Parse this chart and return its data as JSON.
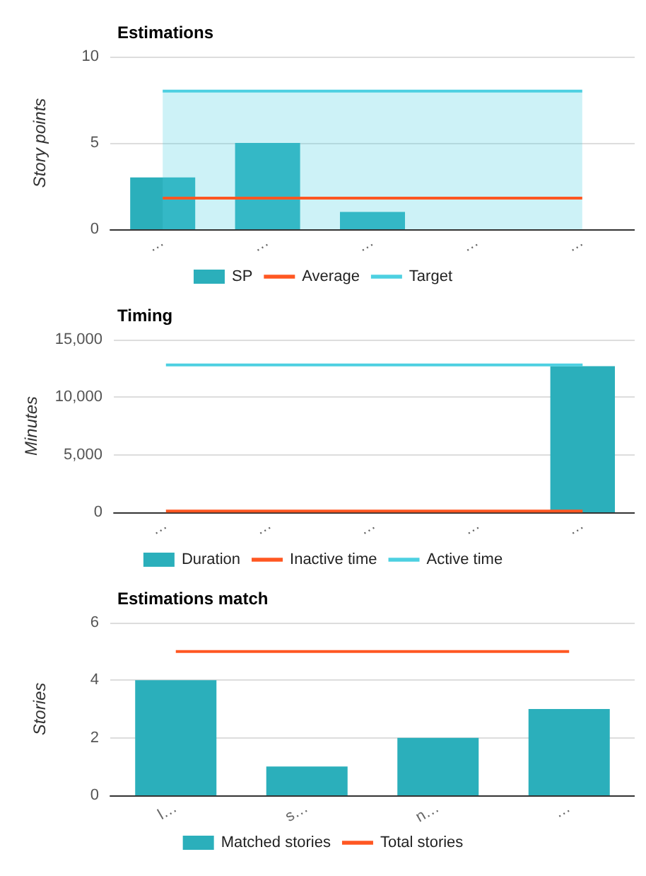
{
  "chart_data": [
    {
      "type": "bar",
      "title": "Estimations",
      "ylabel": "Story points",
      "categories": [
        "…",
        "…",
        "…",
        "…",
        "…"
      ],
      "ylim": [
        0,
        10
      ],
      "yticks": [
        0,
        5,
        10
      ],
      "grid": "y",
      "legend": "bottom",
      "marker": "none",
      "series": [
        {
          "name": "SP",
          "color": "#2bafbb",
          "values": [
            3,
            5,
            1,
            0,
            0
          ]
        },
        {
          "name": "Average",
          "type": "line",
          "color": "#ff5722",
          "values": [
            1.8,
            1.8,
            1.8,
            1.8,
            1.8
          ]
        },
        {
          "name": "Target",
          "type": "area",
          "color": "#4dd0e1",
          "values": [
            8,
            8,
            8,
            8,
            8
          ]
        }
      ]
    },
    {
      "type": "bar",
      "title": "Timing",
      "ylabel": "Minutes",
      "categories": [
        "…",
        "…",
        "…",
        "…",
        "…"
      ],
      "ylim": [
        0,
        15000
      ],
      "yticks": [
        {
          "value": 0,
          "label": "0"
        },
        {
          "value": 5000,
          "label": "5,000"
        },
        {
          "value": 10000,
          "label": "10,000"
        },
        {
          "value": 15000,
          "label": "15,000"
        }
      ],
      "grid": "y",
      "legend": "bottom",
      "marker": "none",
      "series": [
        {
          "name": "Duration",
          "color": "#2bafbb",
          "values": [
            0,
            0,
            0,
            0,
            12700
          ]
        },
        {
          "name": "Inactive time",
          "type": "line",
          "color": "#ff5722",
          "values": [
            100,
            100,
            100,
            100,
            100
          ]
        },
        {
          "name": "Active time",
          "type": "line",
          "color": "#4dd0e1",
          "values": [
            12800,
            12800,
            12800,
            12800,
            12800
          ]
        }
      ]
    },
    {
      "type": "bar",
      "title": "Estimations match",
      "ylabel": "Stories",
      "categories": [
        "l…",
        "s…",
        "n…",
        "…"
      ],
      "ylim": [
        0,
        6
      ],
      "yticks": [
        0,
        2,
        4,
        6
      ],
      "grid": "y",
      "legend": "bottom",
      "marker": "none",
      "series": [
        {
          "name": "Matched stories",
          "color": "#2bafbb",
          "values": [
            4,
            1,
            2,
            3
          ]
        },
        {
          "name": "Total stories",
          "type": "line",
          "color": "#ff5722",
          "values": [
            5,
            5,
            5,
            5
          ]
        }
      ]
    }
  ]
}
